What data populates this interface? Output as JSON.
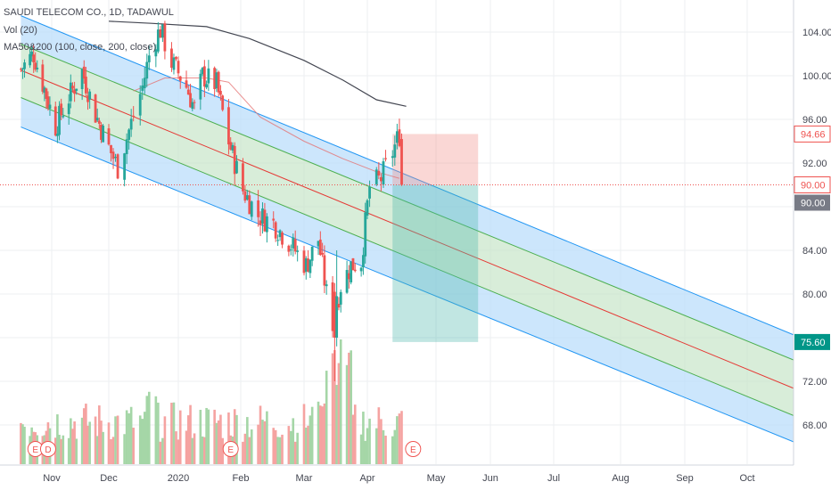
{
  "legend": {
    "line1": "SAUDI TELECOM CO., 1D, TADAWUL",
    "line2": "Vol (20)",
    "line3": "MA50&200 (100, close, 200, close)"
  },
  "colors": {
    "up": "#26a69a",
    "down": "#ef5350",
    "vol_up": "#a5d6a7",
    "vol_down": "#f5a3a1",
    "channel_outer": "#2196f3",
    "channel_fill_outer": "#bbdefb",
    "channel_inner": "#4caf50",
    "channel_fill_inner": "#c8e6c9",
    "median": "#e53935",
    "ma200": "#434651",
    "ma50": "#e57373",
    "grid": "#eceff2",
    "badge_red": "#ef5350",
    "badge_dark": "#787b86",
    "badge_green": "#009688"
  },
  "price_badges": [
    {
      "label": "94.66",
      "kind": "red"
    },
    {
      "label": "90.00",
      "kind": "red"
    },
    {
      "label": "90.00",
      "kind": "dark"
    },
    {
      "label": "75.60",
      "kind": "green"
    }
  ],
  "events": [
    {
      "label": "E",
      "date_index": 20,
      "kind": "earnings"
    },
    {
      "label": "D",
      "date_index": 35,
      "kind": "dividend"
    },
    {
      "label": "E",
      "date_index": 93,
      "kind": "earnings"
    },
    {
      "label": "E",
      "date_index": 173,
      "kind": "earnings"
    }
  ],
  "chart_data": {
    "type": "candlestick",
    "title": "SAUDI TELECOM CO., 1D, TADAWUL",
    "y_axis": {
      "ticks": [
        "104.00",
        "100.00",
        "96.00",
        "92.00",
        "88.00",
        "84.00",
        "80.00",
        "76.00",
        "72.00",
        "68.00"
      ],
      "tick_values": [
        104,
        100,
        96,
        92,
        88,
        84,
        80,
        76,
        72,
        68
      ],
      "range": [
        64.9,
        106.2
      ]
    },
    "x_axis": {
      "ticks": [
        "Nov",
        "Dec",
        "2020",
        "Feb",
        "Mar",
        "Apr",
        "May",
        "Jun",
        "Jul",
        "Aug",
        "Sep",
        "Oct"
      ]
    },
    "ohlc_anchors": [
      {
        "d": "2019-10-15",
        "close": 100.6
      },
      {
        "d": "2019-10-22",
        "close": 102.0
      },
      {
        "d": "2019-10-28",
        "close": 98.8
      },
      {
        "d": "2019-11-03",
        "close": 95.4
      },
      {
        "d": "2019-11-10",
        "close": 98.0
      },
      {
        "d": "2019-11-17",
        "close": 100.4
      },
      {
        "d": "2019-11-24",
        "close": 96.5
      },
      {
        "d": "2019-12-01",
        "close": 93.4
      },
      {
        "d": "2019-12-05",
        "close": 91.6
      },
      {
        "d": "2019-12-10",
        "close": 95.0
      },
      {
        "d": "2019-12-16",
        "close": 99.0
      },
      {
        "d": "2019-12-20",
        "close": 102.8
      },
      {
        "d": "2019-12-24",
        "close": 104.2
      },
      {
        "d": "2019-12-29",
        "close": 101.2
      },
      {
        "d": "2020-01-05",
        "close": 99.0
      },
      {
        "d": "2020-01-09",
        "close": 97.0
      },
      {
        "d": "2020-01-13",
        "close": 100.0
      },
      {
        "d": "2020-01-20",
        "close": 99.2
      },
      {
        "d": "2020-01-26",
        "close": 94.0
      },
      {
        "d": "2020-02-02",
        "close": 89.5
      },
      {
        "d": "2020-02-09",
        "close": 87.2
      },
      {
        "d": "2020-02-16",
        "close": 86.5
      },
      {
        "d": "2020-02-23",
        "close": 84.8
      },
      {
        "d": "2020-03-02",
        "close": 82.6
      },
      {
        "d": "2020-03-08",
        "close": 85.0
      },
      {
        "d": "2020-03-12",
        "close": 80.0
      },
      {
        "d": "2020-03-15",
        "close": 77.4
      },
      {
        "d": "2020-03-19",
        "close": 80.8
      },
      {
        "d": "2020-03-24",
        "close": 82.6
      },
      {
        "d": "2020-03-29",
        "close": 83.0
      },
      {
        "d": "2020-04-02",
        "close": 89.8
      },
      {
        "d": "2020-04-07",
        "close": 90.6
      },
      {
        "d": "2020-04-12",
        "close": 93.0
      },
      {
        "d": "2020-04-15",
        "close": 94.66
      },
      {
        "d": "2020-04-16",
        "close": 90.0
      }
    ],
    "ma200_anchors": [
      {
        "d": "2019-12-01",
        "v": 105.0
      },
      {
        "d": "2019-12-20",
        "v": 104.8
      },
      {
        "d": "2020-01-15",
        "v": 104.5
      },
      {
        "d": "2020-02-05",
        "v": 103.4
      },
      {
        "d": "2020-03-01",
        "v": 101.4
      },
      {
        "d": "2020-03-20",
        "v": 99.6
      },
      {
        "d": "2020-04-05",
        "v": 97.8
      },
      {
        "d": "2020-04-18",
        "v": 97.2
      }
    ],
    "ma50_anchors": [
      {
        "d": "2019-12-12",
        "v": 98.6
      },
      {
        "d": "2019-12-26",
        "v": 99.8
      },
      {
        "d": "2020-01-15",
        "v": 99.8
      },
      {
        "d": "2020-01-26",
        "v": 99.4
      },
      {
        "d": "2020-02-10",
        "v": 96.2
      },
      {
        "d": "2020-03-01",
        "v": 94.0
      },
      {
        "d": "2020-03-20",
        "v": 92.4
      },
      {
        "d": "2020-04-05",
        "v": 91.2
      },
      {
        "d": "2020-04-15",
        "v": 90.6
      }
    ],
    "regression_channel": {
      "start": "2019-10-15",
      "end": "2020-10-31",
      "upper_start": 105.5,
      "upper_end": 75.6,
      "inner_upper_start": 102.9,
      "inner_upper_end": 73.3,
      "median_start": 100.5,
      "median_end": 70.7,
      "inner_lower_start": 98.0,
      "inner_lower_end": 68.2,
      "lower_start": 95.3,
      "lower_end": 65.8
    },
    "short_position": {
      "start": "2020-04-12",
      "end": "2020-05-25",
      "entry": 90.0,
      "stop": 94.66,
      "target": 75.6
    },
    "last_price": 90.0,
    "last_price_line": 90.0
  }
}
